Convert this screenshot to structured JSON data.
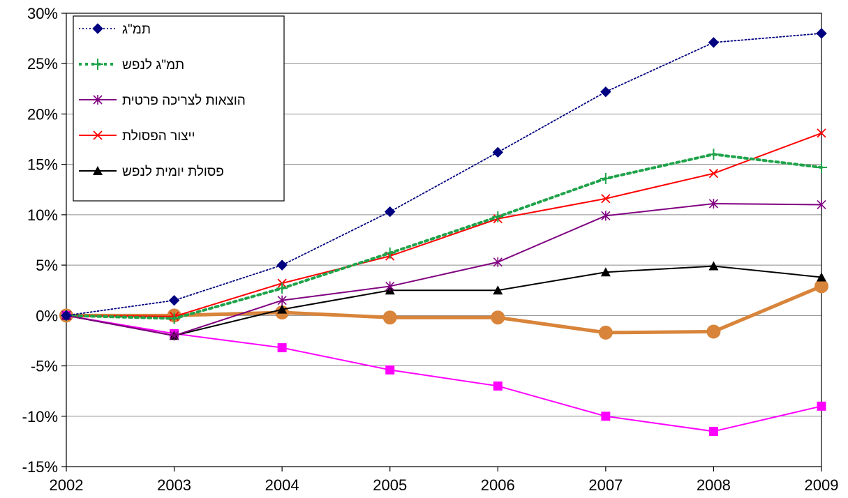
{
  "chart_data": {
    "type": "line",
    "title": "",
    "xlabel": "",
    "ylabel": "",
    "x": [
      "2002",
      "2003",
      "2004",
      "2005",
      "2006",
      "2007",
      "2008",
      "2009"
    ],
    "ylim": [
      -15,
      30
    ],
    "y_ticks": [
      30,
      25,
      20,
      15,
      10,
      5,
      0,
      -5,
      -10,
      -15
    ],
    "y_tick_labels": [
      "30%",
      "25%",
      "20%",
      "15%",
      "10%",
      "5%",
      "0%",
      "-5%",
      "-10%",
      "-15%"
    ],
    "grid": "horizontal",
    "legend_position": "top-left",
    "series": [
      {
        "name": "תמ\"ג",
        "values": [
          0,
          1.5,
          5.0,
          10.3,
          16.2,
          22.2,
          27.1,
          28.0
        ],
        "color": "#000080",
        "line_style": "dotted",
        "marker": "diamond",
        "in_legend": true
      },
      {
        "name": "תמ\"ג לנפש",
        "values": [
          0,
          -0.3,
          2.7,
          6.2,
          9.8,
          13.6,
          16.0,
          14.7
        ],
        "color": "#1FA34A",
        "line_style": "dotted-thick",
        "marker": "plus",
        "in_legend": true
      },
      {
        "name": "הוצאות לצריכה פרטית",
        "values": [
          0,
          -2.0,
          1.5,
          2.9,
          5.3,
          9.9,
          11.1,
          11.0
        ],
        "color": "#800080",
        "line_style": "solid",
        "marker": "star",
        "in_legend": true
      },
      {
        "name": "ייצור הפסולת",
        "values": [
          0,
          -0.1,
          3.2,
          5.9,
          9.6,
          11.6,
          14.1,
          18.1
        ],
        "color": "#FF0000",
        "line_style": "solid",
        "marker": "x",
        "in_legend": true
      },
      {
        "name": "פסולת יומית לנפש",
        "values": [
          0,
          -2.0,
          0.6,
          2.5,
          2.5,
          4.3,
          4.9,
          3.8
        ],
        "color": "#000000",
        "line_style": "solid",
        "marker": "triangle",
        "in_legend": true
      },
      {
        "values": [
          0,
          -1.8,
          -3.2,
          -5.4,
          -7.0,
          -10.0,
          -11.5,
          -9.0
        ],
        "color": "#FF00FF",
        "line_style": "solid",
        "marker": "square",
        "in_legend": false
      },
      {
        "values": [
          0,
          0.0,
          0.3,
          -0.2,
          -0.2,
          -1.7,
          -1.6,
          2.9
        ],
        "color": "#D8843A",
        "line_style": "solid-thick",
        "marker": "circle",
        "in_legend": false
      }
    ]
  }
}
